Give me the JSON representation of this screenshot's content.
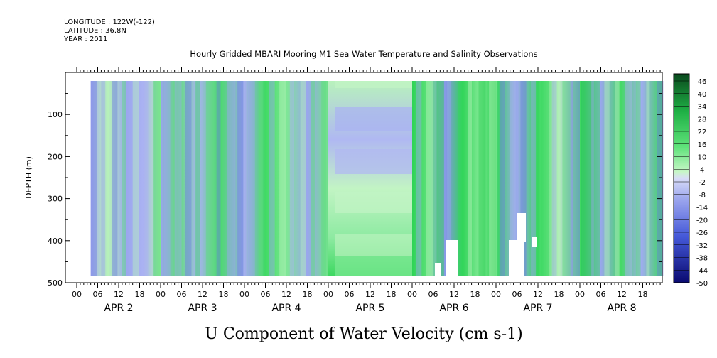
{
  "header": {
    "longitude": "LONGITUDE : 122W(-122)",
    "latitude": "LATITUDE : 36.8N",
    "year": "YEAR : 2011",
    "title": "Hourly Gridded MBARI Mooring M1 Sea Water Temperature and Salinity Observations"
  },
  "chart_data": {
    "type": "heatmap",
    "title": "Hourly Gridded MBARI Mooring M1 Sea Water Temperature and Salinity Observations",
    "xlabel": "U Component of Water Velocity (cm s-1)",
    "ylabel": "DEPTH (m)",
    "x_hour_ticks": [
      "00",
      "06",
      "12",
      "18",
      "00",
      "06",
      "12",
      "18",
      "00",
      "06",
      "12",
      "18",
      "00",
      "06",
      "12",
      "18",
      "00",
      "06",
      "12",
      "18",
      "00",
      "06",
      "12",
      "18",
      "00",
      "06",
      "12",
      "18"
    ],
    "x_day_labels": [
      "APR 2",
      "APR 3",
      "APR 4",
      "APR 5",
      "APR 6",
      "APR 7",
      "APR 8"
    ],
    "y_ticks": [
      "100",
      "200",
      "300",
      "400",
      "500"
    ],
    "ylim": [
      500,
      0
    ],
    "colorbar_labels": [
      "46",
      "40",
      "34",
      "28",
      "22",
      "16",
      "10",
      "4",
      "-2",
      "-8",
      "-14",
      "-20",
      "-26",
      "-32",
      "-38",
      "-44",
      "-50"
    ],
    "colorbar_range": [
      -50,
      50
    ],
    "colors": {
      "strong_negative": "#000080",
      "mid_negative": "#6470dc",
      "weak_negative": "#aab4f0",
      "weak_positive": "#b4f0b4",
      "mid_positive": "#3cdc5a",
      "strong_positive": "#0a5a23"
    },
    "approx_values_by_day_cm_s": [
      {
        "day": "APR 2",
        "value": -8
      },
      {
        "day": "APR 3",
        "value": 2
      },
      {
        "day": "APR 4",
        "value": 6
      },
      {
        "day": "APR 5",
        "value": 3
      },
      {
        "day": "APR 6",
        "value": 14
      },
      {
        "day": "APR 7",
        "value": 8
      },
      {
        "day": "APR 8",
        "value": 10
      }
    ]
  }
}
